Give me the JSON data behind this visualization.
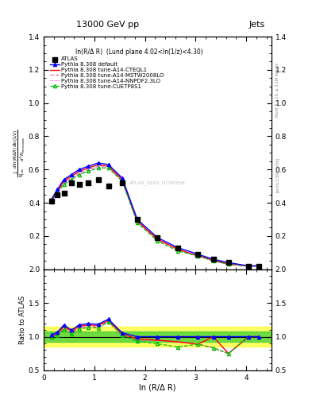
{
  "title_left": "13000 GeV pp",
  "title_right": "Jets",
  "annotation": "ln(R/Δ R)  (Lund plane 4.02<ln(1/z)<4.30)",
  "watermark": "ATLAS_2020_I1790256",
  "right_label_top": "Rivet 3.1.10, ≥ 3.1M events",
  "right_label_bot": "[arXiv:1306.3436]",
  "ylabel_main": "$\\frac{1}{N_{\\rm jets}}\\frac{d\\ln(R/\\Delta R)\\,d\\ln(1/z)}{d^2 N_{\\rm emissions}}$",
  "ylabel_ratio": "Ratio to ATLAS",
  "xlabel": "ln (R/Δ R)",
  "xlim": [
    0,
    4.5
  ],
  "ylim_main": [
    0,
    1.4
  ],
  "ylim_ratio": [
    0.5,
    2.0
  ],
  "x_data": [
    0.15,
    0.27,
    0.4,
    0.55,
    0.7,
    0.88,
    1.08,
    1.28,
    1.55,
    1.85,
    2.25,
    2.65,
    3.05,
    3.35,
    3.65,
    4.05,
    4.25
  ],
  "atlas_y": [
    0.41,
    0.45,
    0.46,
    0.52,
    0.51,
    0.52,
    0.54,
    0.5,
    0.52,
    0.3,
    0.19,
    0.13,
    0.09,
    0.06,
    0.04,
    0.02,
    0.02
  ],
  "pythia_default_y": [
    0.42,
    0.48,
    0.54,
    0.57,
    0.6,
    0.62,
    0.64,
    0.63,
    0.55,
    0.3,
    0.19,
    0.13,
    0.09,
    0.06,
    0.04,
    0.02,
    0.02
  ],
  "pythia_cteq_y": [
    0.41,
    0.47,
    0.53,
    0.56,
    0.59,
    0.61,
    0.63,
    0.62,
    0.54,
    0.29,
    0.18,
    0.12,
    0.08,
    0.06,
    0.03,
    0.02,
    0.02
  ],
  "pythia_mstw_y": [
    0.41,
    0.47,
    0.52,
    0.55,
    0.58,
    0.6,
    0.62,
    0.62,
    0.54,
    0.29,
    0.18,
    0.12,
    0.08,
    0.05,
    0.03,
    0.02,
    0.02
  ],
  "pythia_nnpdf_y": [
    0.41,
    0.46,
    0.51,
    0.54,
    0.57,
    0.59,
    0.61,
    0.61,
    0.53,
    0.28,
    0.18,
    0.12,
    0.08,
    0.05,
    0.03,
    0.02,
    0.02
  ],
  "pythia_cuetp_y": [
    0.41,
    0.46,
    0.51,
    0.54,
    0.57,
    0.59,
    0.61,
    0.61,
    0.53,
    0.28,
    0.17,
    0.11,
    0.08,
    0.05,
    0.03,
    0.02,
    0.02
  ],
  "color_atlas": "black",
  "color_default": "blue",
  "color_cteq": "red",
  "color_mstw": "#ff69b4",
  "color_nnpdf": "#ff00ff",
  "color_cuetp": "#00bb00",
  "band_yellow": [
    0.85,
    1.15
  ],
  "band_green": [
    0.92,
    1.08
  ],
  "xticks": [
    0,
    1,
    2,
    3,
    4
  ],
  "yticks_main": [
    0.2,
    0.4,
    0.6,
    0.8,
    1.0,
    1.2,
    1.4
  ],
  "yticks_ratio": [
    0.5,
    1.0,
    1.5,
    2.0
  ]
}
